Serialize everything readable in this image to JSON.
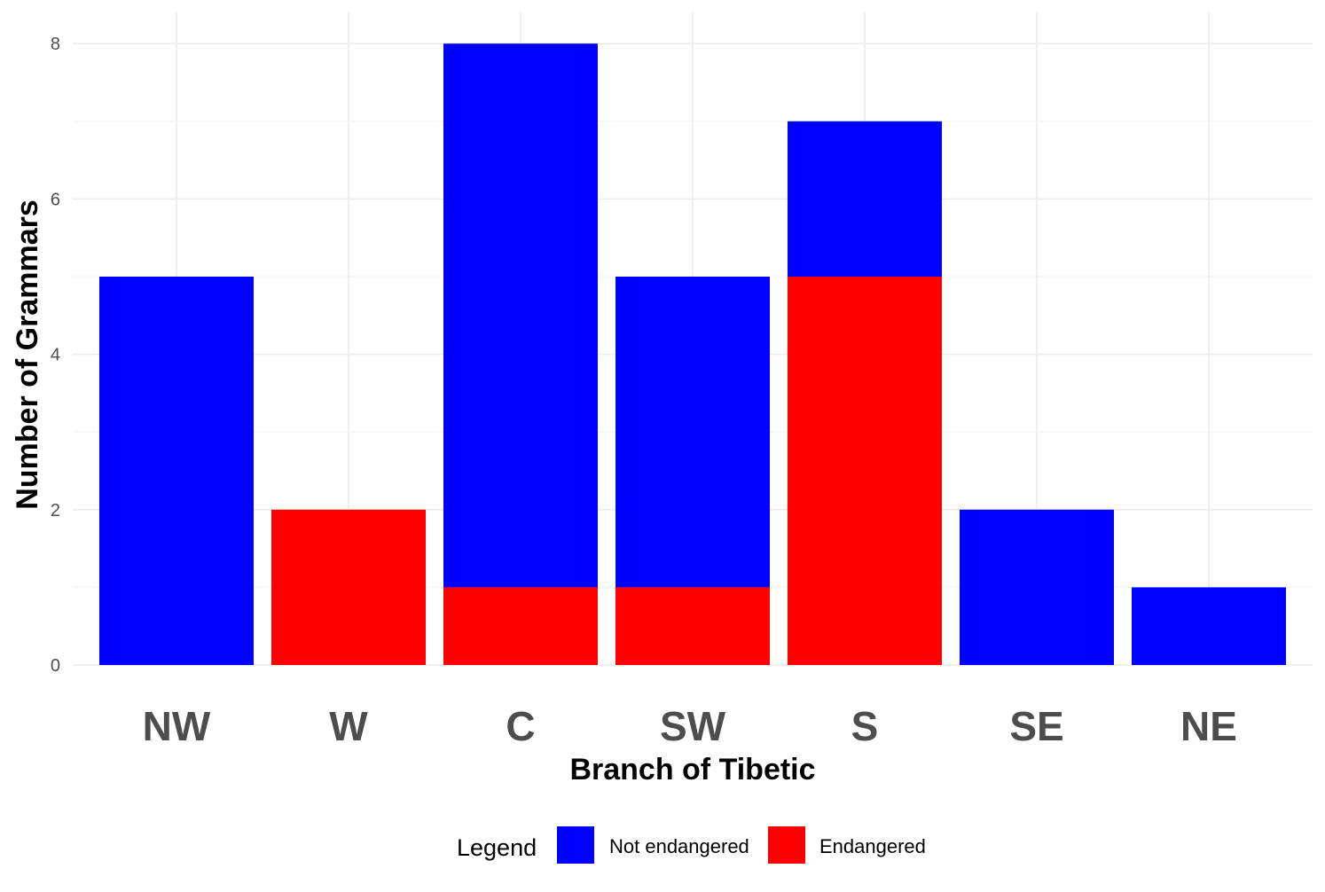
{
  "chart_data": {
    "type": "bar",
    "stacked": true,
    "xlabel": "Branch of Tibetic",
    "ylabel": "Number of Grammars",
    "categories": [
      "NW",
      "W",
      "C",
      "SW",
      "S",
      "SE",
      "NE"
    ],
    "ylim": [
      0,
      8.4
    ],
    "y_ticks": [
      0,
      2,
      4,
      6,
      8
    ],
    "grid": true,
    "legend": {
      "title": "Legend",
      "position": "bottom"
    },
    "series": [
      {
        "name": "Endangered",
        "color": "#ff0000",
        "values": [
          0,
          2,
          1,
          1,
          5,
          0,
          0
        ]
      },
      {
        "name": "Not endangered",
        "color": "#0000ff",
        "values": [
          5,
          0,
          7,
          4,
          2,
          2,
          1
        ]
      }
    ],
    "legend_order": [
      "Not endangered",
      "Endangered"
    ]
  }
}
